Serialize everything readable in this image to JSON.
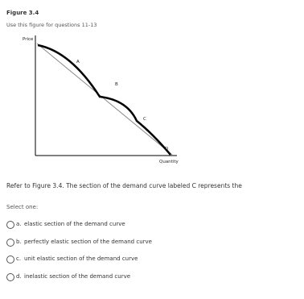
{
  "header": {
    "title": "Figure 3.4",
    "subtitle": "Use this figure for questions 11-13"
  },
  "figure": {
    "y_label": "Price",
    "x_label": "Quantity",
    "curve_labels": [
      "A",
      "B",
      "C",
      "D"
    ]
  },
  "question": {
    "text": "Refer to Figure 3.4. The section of the demand curve labeled C represents the",
    "prompt": "Select one:",
    "options": [
      {
        "letter": "a.",
        "text": "elastic section of the demand curve"
      },
      {
        "letter": "b.",
        "text": "perfectly elastic section of the demand curve"
      },
      {
        "letter": "c.",
        "text": "unit elastic section of the demand curve"
      },
      {
        "letter": "d.",
        "text": "inelastic section of the demand curve"
      }
    ]
  }
}
